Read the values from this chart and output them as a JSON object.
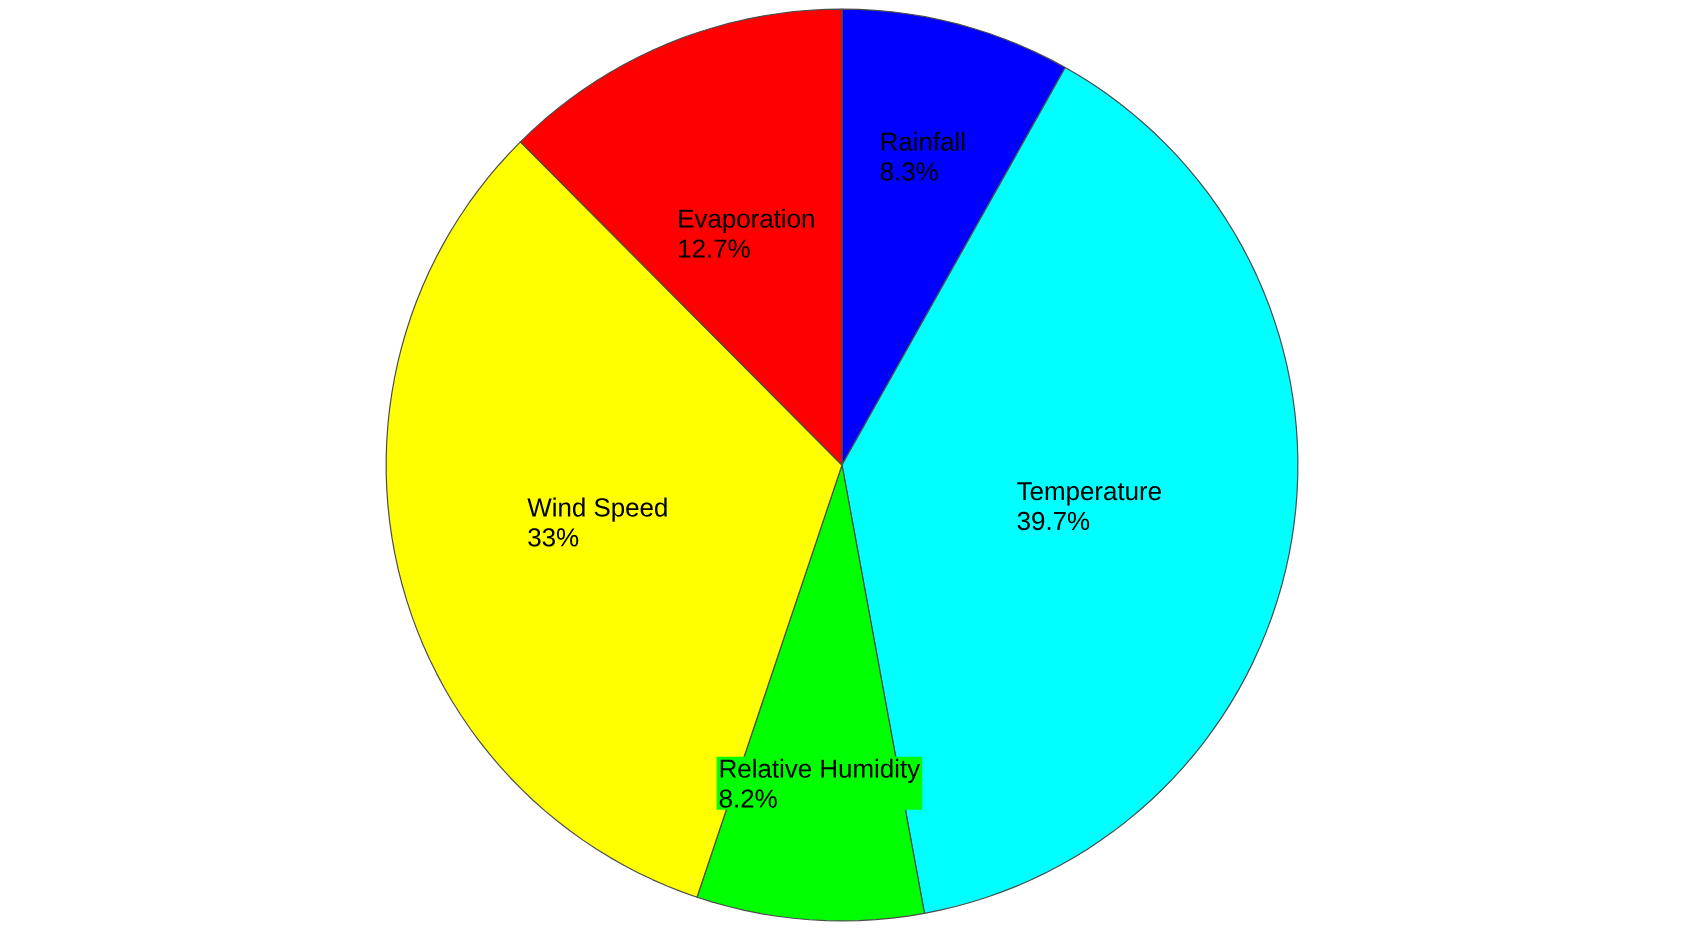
{
  "chart_data": {
    "type": "pie",
    "categories": [
      "Rainfall",
      "Temperature",
      "Relative Humidity",
      "Wind Speed",
      "Evaporation"
    ],
    "values": [
      8.3,
      39.7,
      8.2,
      33,
      12.7
    ],
    "value_labels": [
      "8.3%",
      "39.7%",
      "8.2%",
      "33%",
      "12.7%"
    ],
    "colors": [
      "#0000ff",
      "#00ffff",
      "#00ff00",
      "#ffff00",
      "#ff0000"
    ]
  }
}
